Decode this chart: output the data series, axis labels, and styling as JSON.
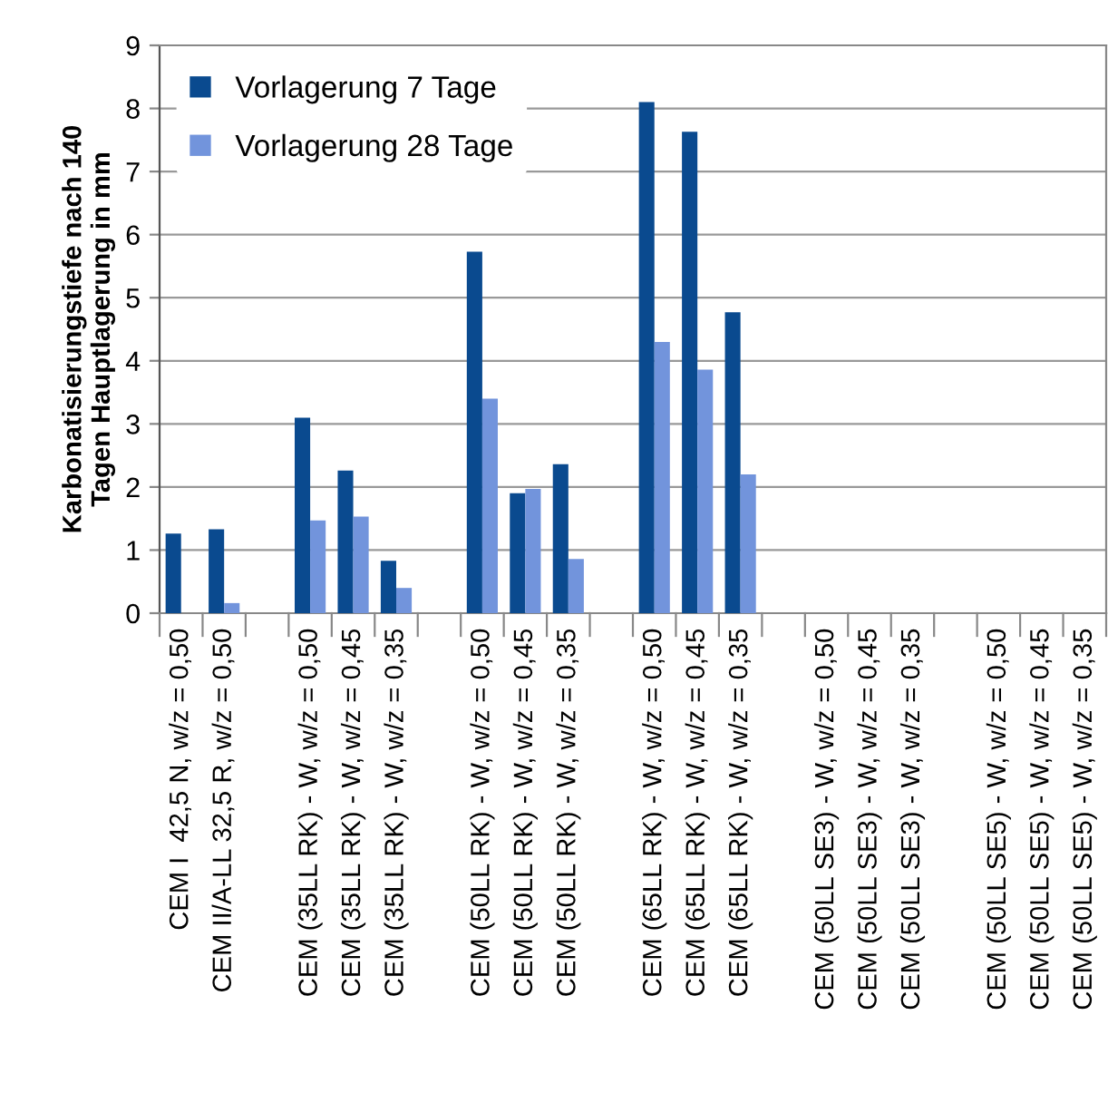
{
  "chart_data": {
    "type": "bar",
    "ylabel": "Karbonatisierungstiefe nach 140\nTagen Hauptlagerung in mm",
    "categories": [
      "CEM I  42,5 N, w/z = 0,50",
      "CEM II/A-LL 32,5 R, w/z = 0,50",
      null,
      "CEM (35LL RK) - W, w/z = 0,50",
      "CEM (35LL RK) - W, w/z = 0,45",
      "CEM (35LL RK) - W, w/z = 0,35",
      null,
      "CEM (50LL RK) - W, w/z = 0,50",
      "CEM (50LL RK) - W, w/z = 0,45",
      "CEM (50LL RK) - W, w/z = 0,35",
      null,
      "CEM (65LL RK) - W, w/z = 0,50",
      "CEM (65LL RK) - W, w/z = 0,45",
      "CEM (65LL RK) - W, w/z = 0,35",
      null,
      "CEM (50LL SE3) - W, w/z = 0,50",
      "CEM (50LL SE3) - W, w/z = 0,45",
      "CEM (50LL SE3) - W, w/z = 0,35",
      null,
      "CEM (50LL SE5) - W, w/z = 0,50",
      "CEM (50LL SE5) - W, w/z = 0,45",
      "CEM (50LL SE5) - W, w/z = 0,35"
    ],
    "series": [
      {
        "name": "Vorlagerung 7 Tage",
        "color": "#0a4a8f",
        "values": [
          1.26,
          1.33,
          null,
          3.1,
          2.26,
          0.83,
          null,
          5.73,
          1.9,
          2.36,
          null,
          8.1,
          7.63,
          4.77,
          null,
          null,
          null,
          null,
          null,
          null,
          null,
          null
        ]
      },
      {
        "name": "Vorlagerung 28 Tage",
        "color": "#7294dc",
        "values": [
          null,
          0.16,
          null,
          1.47,
          1.53,
          0.4,
          null,
          3.4,
          1.97,
          0.86,
          null,
          4.3,
          3.86,
          2.2,
          null,
          null,
          null,
          null,
          null,
          null,
          null,
          null
        ]
      }
    ],
    "ylim": [
      0,
      9
    ],
    "yticks": [
      0,
      1,
      2,
      3,
      4,
      5,
      6,
      7,
      8,
      9
    ],
    "grid": "y",
    "legend": "top left"
  }
}
